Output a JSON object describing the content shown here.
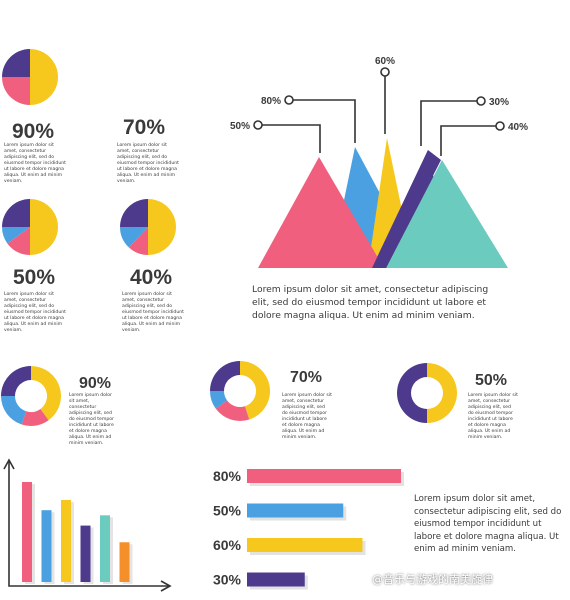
{
  "colors": {
    "pink": "#f0607e",
    "yellow": "#f6c81d",
    "purple": "#4e3a8c",
    "blue": "#4aa0e0",
    "teal": "#6ccbbf",
    "orange": "#f58f2a",
    "text": "#3a3a3a"
  },
  "lorem_short": "Lorem ipsum dolor sit amet, consectetur adipiscing elit, sed do eiusmod tempor incididunt ut labore et dolore magna aliqua. Ut enim ad minim veniam.",
  "lorem_long": "Lorem ipsum dolor sit amet, consectetur adipiscing elit, sed do eiusmod tempor incididunt ut labore et dolore magna aliqua. Ut enim ad minim veniam.",
  "watermark": "@音乐与游戏的南美旋律",
  "chart_data": [
    {
      "type": "pie",
      "label": "90%",
      "segments": [
        {
          "color": "yellow",
          "value": 50
        },
        {
          "color": "pink",
          "value": 25
        },
        {
          "color": "purple",
          "value": 25
        }
      ]
    },
    {
      "type": "pie",
      "label": "70%",
      "segments": []
    },
    {
      "type": "pie",
      "label": "50%",
      "segments": [
        {
          "color": "yellow",
          "value": 50
        },
        {
          "color": "pink",
          "value": 15
        },
        {
          "color": "blue",
          "value": 10
        },
        {
          "color": "purple",
          "value": 25
        }
      ]
    },
    {
      "type": "pie",
      "label": "40%",
      "segments": [
        {
          "color": "yellow",
          "value": 50
        },
        {
          "color": "pink",
          "value": 12
        },
        {
          "color": "blue",
          "value": 13
        },
        {
          "color": "purple",
          "value": 25
        }
      ]
    },
    {
      "type": "area",
      "labels": [
        "50%",
        "80%",
        "60%",
        "30%",
        "40%"
      ],
      "values": [
        50,
        80,
        60,
        30,
        40
      ]
    },
    {
      "type": "pie",
      "label": "90%",
      "segments": [
        {
          "color": "yellow",
          "value": 40
        },
        {
          "color": "pink",
          "value": 15
        },
        {
          "color": "blue",
          "value": 20
        },
        {
          "color": "purple",
          "value": 25
        }
      ]
    },
    {
      "type": "pie",
      "label": "70%",
      "segments": [
        {
          "color": "yellow",
          "value": 45
        },
        {
          "color": "pink",
          "value": 20
        },
        {
          "color": "blue",
          "value": 10
        },
        {
          "color": "purple",
          "value": 25
        }
      ]
    },
    {
      "type": "pie",
      "label": "50%",
      "segments": [
        {
          "color": "yellow",
          "value": 50
        },
        {
          "color": "purple",
          "value": 50
        }
      ]
    },
    {
      "type": "bar",
      "values": [
        78,
        56,
        64,
        44,
        52,
        31
      ],
      "colors": [
        "pink",
        "blue",
        "yellow",
        "purple",
        "teal",
        "orange"
      ]
    },
    {
      "type": "bar",
      "categories": [
        "80%",
        "50%",
        "60%",
        "30%"
      ],
      "values": [
        80,
        50,
        60,
        30
      ],
      "colors": [
        "pink",
        "blue",
        "yellow",
        "purple"
      ]
    }
  ]
}
